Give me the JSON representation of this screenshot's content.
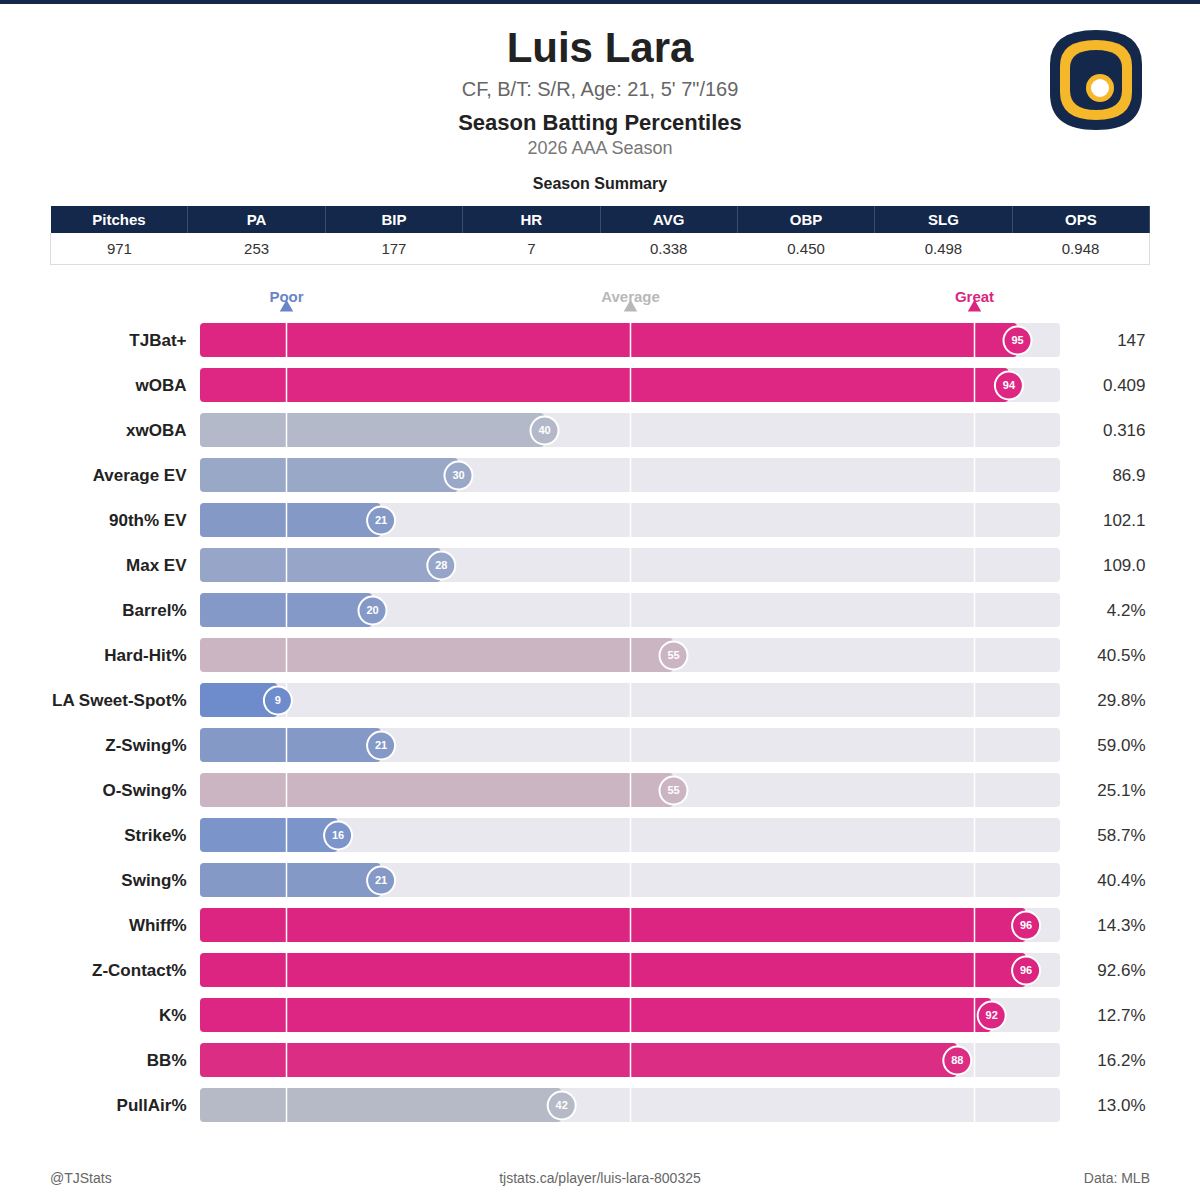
{
  "header": {
    "name": "Luis Lara",
    "bio": "CF, B/T: S/R, Age: 21, 5' 7\"/169",
    "title": "Season Batting Percentiles",
    "season": "2026 AAA Season"
  },
  "summary": {
    "title": "Season Summary",
    "columns": [
      "Pitches",
      "PA",
      "BIP",
      "HR",
      "AVG",
      "OBP",
      "SLG",
      "OPS"
    ],
    "values": [
      "971",
      "253",
      "177",
      "7",
      "0.338",
      "0.450",
      "0.498",
      "0.948"
    ]
  },
  "chart_data": {
    "type": "bar",
    "orientation": "horizontal",
    "data_labels": true,
    "tick_labels": "y",
    "categories": [
      "TJBat+",
      "wOBA",
      "xwOBA",
      "Average EV",
      "90th% EV",
      "Max EV",
      "Barrel%",
      "Hard-Hit%",
      "LA Sweet-Spot%",
      "Z-Swing%",
      "O-Swing%",
      "Strike%",
      "Swing%",
      "Whiff%",
      "Z-Contact%",
      "K%",
      "BB%",
      "PullAir%"
    ],
    "values": [
      95,
      94,
      40,
      30,
      21,
      28,
      20,
      55,
      9,
      21,
      55,
      16,
      21,
      96,
      96,
      92,
      88,
      42
    ],
    "colors": [
      "#dd2681",
      "#dd2782",
      "#b3b9c8",
      "#9aa8c8",
      "#8599c6",
      "#97a5c8",
      "#8499c8",
      "#cbb5c2",
      "#6e8bcb",
      "#8599c6",
      "#cbb5c2",
      "#7b94c9",
      "#8599c6",
      "#dc2581",
      "#dc2581",
      "#dd2683",
      "#dc2d85",
      "#b5bac6"
    ],
    "stats": [
      "147",
      "0.409",
      "0.316",
      "86.9",
      "102.1",
      "109.0",
      "4.2%",
      "40.5%",
      "29.8%",
      "59.0%",
      "25.1%",
      "58.7%",
      "40.4%",
      "14.3%",
      "92.6%",
      "12.7%",
      "16.2%",
      "13.0%"
    ],
    "xlim": [
      0,
      100
    ],
    "reference_lines": [
      {
        "value": 10,
        "label": "Poor",
        "color": "#6a85c6"
      },
      {
        "value": 50,
        "label": "Average",
        "color": "#b8b8b8"
      },
      {
        "value": 90,
        "label": "Great",
        "color": "#d9277f"
      }
    ]
  },
  "footer": {
    "left": "@TJStats",
    "center": "tjstats.ca/player/luis-lara-800325",
    "right": "Data: MLB"
  }
}
